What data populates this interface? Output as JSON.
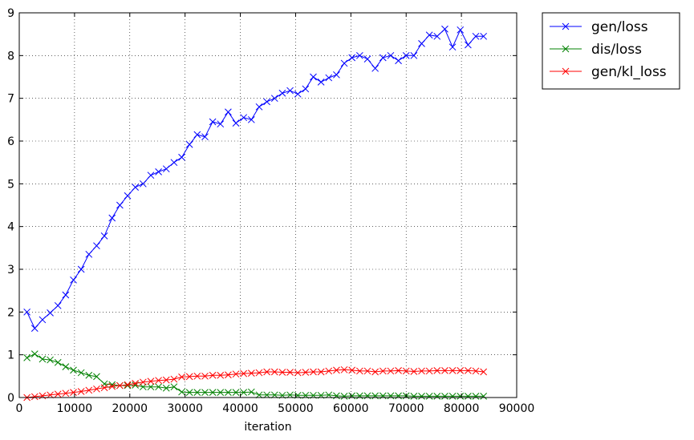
{
  "chart_data": {
    "type": "line",
    "xlabel": "iteration",
    "ylabel": "",
    "xlim": [
      0,
      90000
    ],
    "ylim": [
      0,
      9
    ],
    "xticks": [
      0,
      10000,
      20000,
      30000,
      40000,
      50000,
      60000,
      70000,
      80000,
      90000
    ],
    "yticks": [
      0,
      1,
      2,
      3,
      4,
      5,
      6,
      7,
      8,
      9
    ],
    "grid": true,
    "legend_position": "outside-top-right",
    "x": [
      1400,
      2800,
      4200,
      5600,
      7000,
      8400,
      9800,
      11200,
      12600,
      14000,
      15400,
      16800,
      18200,
      19600,
      21000,
      22400,
      23800,
      25200,
      26600,
      28000,
      29400,
      30800,
      32200,
      33600,
      35000,
      36400,
      37800,
      39200,
      40600,
      42000,
      43400,
      44800,
      46200,
      47600,
      49000,
      50400,
      51800,
      53200,
      54600,
      56000,
      57400,
      58800,
      60200,
      61600,
      63000,
      64400,
      65800,
      67200,
      68600,
      70000,
      71400,
      72800,
      74200,
      75600,
      77000,
      78400,
      79800,
      81200,
      82600,
      84000
    ],
    "series": [
      {
        "name": "gen/loss",
        "color": "#0000ff",
        "values": [
          2.0,
          1.62,
          1.82,
          1.98,
          2.15,
          2.4,
          2.75,
          3.0,
          3.35,
          3.55,
          3.78,
          4.2,
          4.5,
          4.72,
          4.92,
          5.0,
          5.2,
          5.28,
          5.35,
          5.5,
          5.62,
          5.92,
          6.15,
          6.1,
          6.45,
          6.4,
          6.68,
          6.42,
          6.55,
          6.5,
          6.8,
          6.92,
          7.0,
          7.12,
          7.18,
          7.1,
          7.22,
          7.5,
          7.38,
          7.48,
          7.55,
          7.82,
          7.95,
          8.0,
          7.92,
          7.7,
          7.95,
          8.0,
          7.88,
          8.0,
          8.0,
          8.28,
          8.48,
          8.45,
          8.62,
          8.2,
          8.6,
          8.25,
          8.45,
          8.45
        ]
      },
      {
        "name": "dis/loss",
        "color": "#008000",
        "values": [
          0.93,
          1.02,
          0.9,
          0.88,
          0.82,
          0.72,
          0.64,
          0.58,
          0.52,
          0.49,
          0.32,
          0.3,
          0.28,
          0.28,
          0.29,
          0.25,
          0.25,
          0.25,
          0.22,
          0.25,
          0.13,
          0.12,
          0.12,
          0.12,
          0.12,
          0.12,
          0.12,
          0.12,
          0.12,
          0.13,
          0.06,
          0.06,
          0.06,
          0.05,
          0.06,
          0.05,
          0.05,
          0.05,
          0.05,
          0.06,
          0.04,
          0.03,
          0.04,
          0.04,
          0.04,
          0.04,
          0.04,
          0.04,
          0.04,
          0.04,
          0.03,
          0.03,
          0.03,
          0.03,
          0.03,
          0.03,
          0.03,
          0.03,
          0.03,
          0.03
        ]
      },
      {
        "name": "gen/kl_loss",
        "color": "#ff0000",
        "values": [
          0.0,
          0.02,
          0.04,
          0.06,
          0.08,
          0.1,
          0.12,
          0.14,
          0.17,
          0.2,
          0.23,
          0.26,
          0.28,
          0.3,
          0.33,
          0.36,
          0.38,
          0.4,
          0.41,
          0.43,
          0.48,
          0.49,
          0.5,
          0.5,
          0.52,
          0.52,
          0.53,
          0.55,
          0.56,
          0.57,
          0.58,
          0.6,
          0.6,
          0.59,
          0.59,
          0.58,
          0.59,
          0.6,
          0.6,
          0.62,
          0.64,
          0.65,
          0.64,
          0.62,
          0.62,
          0.6,
          0.62,
          0.62,
          0.63,
          0.62,
          0.61,
          0.62,
          0.62,
          0.63,
          0.63,
          0.63,
          0.63,
          0.63,
          0.62,
          0.6
        ]
      }
    ]
  }
}
